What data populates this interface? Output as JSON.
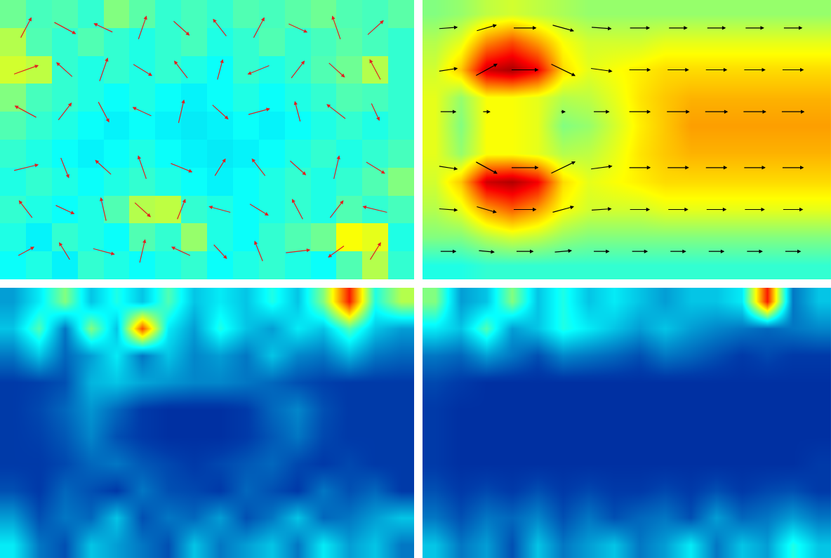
{
  "chart_data": [
    {
      "type": "heatmap",
      "color": "Jet",
      "zlim": [
        0,
        1
      ],
      "xlim": [
        -0.5,
        15.5
      ],
      "ylim": [
        -0.5,
        9.5
      ],
      "tick_labels": false,
      "z": [
        [
          0.38,
          0.4,
          0.36,
          0.42,
          0.4,
          0.38,
          0.4,
          0.42,
          0.38,
          0.4,
          0.42,
          0.4,
          0.38,
          0.45,
          0.55,
          0.42
        ],
        [
          0.4,
          0.36,
          0.42,
          0.4,
          0.38,
          0.45,
          0.42,
          0.52,
          0.4,
          0.38,
          0.42,
          0.45,
          0.48,
          0.62,
          0.6,
          0.4
        ],
        [
          0.42,
          0.4,
          0.38,
          0.4,
          0.45,
          0.55,
          0.56,
          0.42,
          0.4,
          0.38,
          0.4,
          0.42,
          0.4,
          0.45,
          0.42,
          0.44
        ],
        [
          0.4,
          0.42,
          0.4,
          0.38,
          0.4,
          0.42,
          0.4,
          0.38,
          0.36,
          0.38,
          0.4,
          0.42,
          0.4,
          0.42,
          0.45,
          0.5
        ],
        [
          0.42,
          0.4,
          0.38,
          0.36,
          0.38,
          0.4,
          0.38,
          0.36,
          0.35,
          0.36,
          0.38,
          0.4,
          0.42,
          0.4,
          0.42,
          0.44
        ],
        [
          0.45,
          0.42,
          0.4,
          0.38,
          0.36,
          0.38,
          0.36,
          0.35,
          0.36,
          0.38,
          0.36,
          0.38,
          0.4,
          0.42,
          0.4,
          0.42
        ],
        [
          0.5,
          0.44,
          0.42,
          0.4,
          0.38,
          0.4,
          0.38,
          0.36,
          0.38,
          0.4,
          0.38,
          0.4,
          0.42,
          0.45,
          0.44,
          0.42
        ],
        [
          0.58,
          0.56,
          0.42,
          0.4,
          0.42,
          0.4,
          0.42,
          0.4,
          0.38,
          0.42,
          0.4,
          0.42,
          0.45,
          0.48,
          0.55,
          0.42
        ],
        [
          0.55,
          0.45,
          0.42,
          0.45,
          0.42,
          0.4,
          0.42,
          0.44,
          0.4,
          0.42,
          0.45,
          0.42,
          0.44,
          0.46,
          0.44,
          0.42
        ],
        [
          0.48,
          0.44,
          0.45,
          0.42,
          0.5,
          0.46,
          0.42,
          0.44,
          0.42,
          0.45,
          0.44,
          0.46,
          0.48,
          0.45,
          0.44,
          0.46
        ]
      ],
      "vectors": {
        "color": "#e02020",
        "x": [
          0.5,
          2,
          3.5,
          5,
          6.5,
          8,
          9.5,
          11,
          12.5,
          14
        ],
        "y": [
          0.5,
          2,
          3.5,
          5.5,
          7,
          8.5
        ],
        "u": [
          [
            0.6,
            -0.4,
            0.8,
            0.2,
            -0.7,
            0.5,
            -0.3,
            0.9,
            -0.6,
            0.4
          ],
          [
            -0.5,
            0.7,
            -0.2,
            0.6,
            0.3,
            -0.8,
            0.7,
            -0.4,
            0.5,
            -0.9
          ],
          [
            0.9,
            0.3,
            -0.6,
            -0.3,
            0.8,
            0.4,
            -0.5,
            0.6,
            0.2,
            0.7
          ],
          [
            -0.8,
            0.5,
            0.4,
            -0.7,
            0.2,
            0.6,
            0.8,
            -0.2,
            -0.7,
            0.3
          ],
          [
            0.9,
            -0.6,
            0.3,
            0.7,
            -0.5,
            0.2,
            -0.8,
            0.5,
            0.6,
            -0.4
          ],
          [
            0.4,
            0.8,
            -0.7,
            0.3,
            0.6,
            -0.5,
            0.4,
            0.7,
            -0.3,
            0.6
          ]
        ],
        "v": [
          [
            0.3,
            0.6,
            -0.2,
            0.8,
            0.3,
            -0.5,
            0.7,
            0.1,
            -0.4,
            0.6
          ],
          [
            0.6,
            -0.3,
            0.8,
            -0.5,
            0.7,
            0.2,
            -0.4,
            0.7,
            0.6,
            0.2
          ],
          [
            0.2,
            -0.7,
            0.5,
            0.8,
            -0.3,
            0.6,
            0.6,
            -0.5,
            0.8,
            -0.4
          ],
          [
            0.4,
            0.6,
            -0.7,
            0.3,
            0.8,
            -0.5,
            0.2,
            0.7,
            0.5,
            -0.6
          ],
          [
            0.3,
            0.5,
            0.8,
            -0.4,
            0.6,
            0.7,
            -0.3,
            0.6,
            -0.5,
            0.7
          ],
          [
            0.7,
            -0.4,
            0.3,
            0.8,
            -0.5,
            0.6,
            0.7,
            -0.3,
            0.8,
            0.5
          ]
        ]
      }
    },
    {
      "type": "heatmap",
      "color": "Jet",
      "zlim": [
        0,
        1
      ],
      "xlim": [
        -0.5,
        15.5
      ],
      "ylim": [
        -0.5,
        9.5
      ],
      "tick_labels": false,
      "z": [
        [
          0.4,
          0.4,
          0.42,
          0.42,
          0.42,
          0.42,
          0.42,
          0.42,
          0.42,
          0.42,
          0.42,
          0.42,
          0.42,
          0.42,
          0.42,
          0.42
        ],
        [
          0.5,
          0.5,
          0.55,
          0.58,
          0.56,
          0.52,
          0.5,
          0.5,
          0.5,
          0.5,
          0.5,
          0.5,
          0.5,
          0.5,
          0.5,
          0.5
        ],
        [
          0.55,
          0.6,
          0.72,
          0.78,
          0.72,
          0.62,
          0.58,
          0.58,
          0.58,
          0.6,
          0.6,
          0.6,
          0.6,
          0.6,
          0.6,
          0.6
        ],
        [
          0.58,
          0.68,
          0.92,
          0.95,
          0.88,
          0.66,
          0.6,
          0.62,
          0.64,
          0.66,
          0.66,
          0.66,
          0.66,
          0.66,
          0.66,
          0.66
        ],
        [
          0.6,
          0.52,
          0.62,
          0.62,
          0.6,
          0.55,
          0.56,
          0.6,
          0.65,
          0.68,
          0.7,
          0.7,
          0.7,
          0.7,
          0.7,
          0.7
        ],
        [
          0.6,
          0.5,
          0.62,
          0.62,
          0.6,
          0.5,
          0.52,
          0.58,
          0.64,
          0.68,
          0.72,
          0.72,
          0.72,
          0.72,
          0.72,
          0.72
        ],
        [
          0.6,
          0.52,
          0.62,
          0.62,
          0.6,
          0.55,
          0.56,
          0.6,
          0.65,
          0.68,
          0.7,
          0.7,
          0.7,
          0.7,
          0.7,
          0.7
        ],
        [
          0.58,
          0.68,
          0.92,
          0.96,
          0.88,
          0.66,
          0.6,
          0.62,
          0.64,
          0.66,
          0.66,
          0.66,
          0.66,
          0.66,
          0.66,
          0.66
        ],
        [
          0.55,
          0.6,
          0.74,
          0.8,
          0.72,
          0.62,
          0.58,
          0.58,
          0.58,
          0.6,
          0.6,
          0.6,
          0.6,
          0.6,
          0.6,
          0.6
        ],
        [
          0.5,
          0.52,
          0.56,
          0.58,
          0.56,
          0.54,
          0.52,
          0.52,
          0.52,
          0.52,
          0.52,
          0.52,
          0.52,
          0.52,
          0.52,
          0.52
        ]
      ],
      "vectors": {
        "color": "#000000",
        "x": [
          0.5,
          2,
          3.5,
          5,
          6.5,
          8,
          9.5,
          11,
          12.5,
          14
        ],
        "y": [
          0.5,
          2,
          3.5,
          5.5,
          7,
          8.5
        ],
        "u": [
          [
            0.6,
            0.6,
            0.65,
            0.65,
            0.6,
            0.6,
            0.6,
            0.6,
            0.6,
            0.6
          ],
          [
            0.7,
            0.75,
            0.85,
            0.8,
            0.75,
            0.75,
            0.75,
            0.75,
            0.75,
            0.75
          ],
          [
            0.7,
            0.8,
            1.0,
            0.9,
            0.8,
            0.8,
            0.8,
            0.8,
            0.8,
            0.8
          ],
          [
            0.6,
            0.3,
            0,
            0.2,
            0.6,
            0.8,
            0.85,
            0.85,
            0.85,
            0.85
          ],
          [
            0.7,
            0.8,
            1.0,
            0.9,
            0.8,
            0.8,
            0.8,
            0.8,
            0.8,
            0.8
          ],
          [
            0.7,
            0.75,
            0.85,
            0.8,
            0.75,
            0.75,
            0.7,
            0.7,
            0.7,
            0.7
          ]
        ],
        "v": [
          [
            0,
            -0.05,
            0,
            0.05,
            0,
            0,
            0,
            0,
            0,
            0
          ],
          [
            -0.05,
            -0.2,
            0,
            0.2,
            0.05,
            0,
            0,
            0,
            0,
            0
          ],
          [
            -0.1,
            -0.4,
            0,
            0.4,
            0.1,
            0,
            0,
            0,
            0,
            0
          ],
          [
            0,
            0,
            0,
            0,
            0,
            0,
            0,
            0,
            0,
            0
          ],
          [
            0.1,
            0.4,
            0,
            -0.4,
            -0.1,
            0,
            0,
            0,
            0,
            0
          ],
          [
            0.05,
            0.2,
            0,
            -0.2,
            -0.05,
            0,
            0,
            0,
            0,
            0
          ]
        ]
      }
    },
    {
      "type": "heatmap",
      "color": "Jet",
      "zlim": [
        0,
        1
      ],
      "xlim": [
        -0.5,
        15.5
      ],
      "ylim": [
        -0.5,
        9.5
      ],
      "tick_labels": false,
      "z": [
        [
          0.35,
          0.2,
          0.15,
          0.3,
          0.25,
          0.2,
          0.15,
          0.3,
          0.2,
          0.25,
          0.3,
          0.2,
          0.35,
          0.25,
          0.3,
          0.2
        ],
        [
          0.25,
          0.15,
          0.2,
          0.18,
          0.3,
          0.15,
          0.2,
          0.18,
          0.25,
          0.15,
          0.2,
          0.3,
          0.18,
          0.2,
          0.25,
          0.3
        ],
        [
          0.15,
          0.12,
          0.18,
          0.15,
          0.12,
          0.2,
          0.15,
          0.14,
          0.12,
          0.18,
          0.15,
          0.12,
          0.2,
          0.15,
          0.18,
          0.12
        ],
        [
          0.12,
          0.12,
          0.14,
          0.18,
          0.2,
          0.16,
          0.14,
          0.12,
          0.14,
          0.16,
          0.18,
          0.14,
          0.12,
          0.14,
          0.12,
          0.12
        ],
        [
          0.12,
          0.13,
          0.16,
          0.22,
          0.15,
          0.12,
          0.1,
          0.1,
          0.1,
          0.12,
          0.16,
          0.2,
          0.14,
          0.12,
          0.12,
          0.12
        ],
        [
          0.12,
          0.14,
          0.18,
          0.24,
          0.18,
          0.12,
          0.1,
          0.1,
          0.1,
          0.12,
          0.18,
          0.22,
          0.15,
          0.12,
          0.12,
          0.12
        ],
        [
          0.12,
          0.13,
          0.15,
          0.28,
          0.3,
          0.26,
          0.24,
          0.22,
          0.22,
          0.2,
          0.18,
          0.15,
          0.13,
          0.12,
          0.12,
          0.12
        ],
        [
          0.2,
          0.3,
          0.18,
          0.25,
          0.35,
          0.2,
          0.3,
          0.22,
          0.25,
          0.2,
          0.3,
          0.22,
          0.2,
          0.28,
          0.2,
          0.18
        ],
        [
          0.3,
          0.45,
          0.2,
          0.5,
          0.3,
          0.8,
          0.35,
          0.25,
          0.4,
          0.3,
          0.25,
          0.35,
          0.3,
          0.45,
          0.3,
          0.25
        ],
        [
          0.25,
          0.35,
          0.5,
          0.3,
          0.4,
          0.3,
          0.45,
          0.3,
          0.35,
          0.3,
          0.4,
          0.3,
          0.5,
          0.85,
          0.4,
          0.55
        ]
      ]
    },
    {
      "type": "heatmap",
      "color": "Jet",
      "zlim": [
        0,
        1
      ],
      "xlim": [
        -0.5,
        15.5
      ],
      "ylim": [
        -0.5,
        9.5
      ],
      "tick_labels": false,
      "z": [
        [
          0.3,
          0.2,
          0.25,
          0.15,
          0.3,
          0.2,
          0.25,
          0.3,
          0.2,
          0.25,
          0.35,
          0.2,
          0.3,
          0.25,
          0.4,
          0.3
        ],
        [
          0.2,
          0.15,
          0.2,
          0.18,
          0.22,
          0.15,
          0.2,
          0.15,
          0.18,
          0.2,
          0.15,
          0.25,
          0.18,
          0.2,
          0.25,
          0.2
        ],
        [
          0.15,
          0.12,
          0.14,
          0.12,
          0.15,
          0.12,
          0.14,
          0.12,
          0.12,
          0.14,
          0.12,
          0.15,
          0.12,
          0.14,
          0.15,
          0.12
        ],
        [
          0.12,
          0.1,
          0.1,
          0.1,
          0.1,
          0.1,
          0.1,
          0.1,
          0.1,
          0.1,
          0.1,
          0.1,
          0.1,
          0.1,
          0.1,
          0.12
        ],
        [
          0.12,
          0.1,
          0.1,
          0.1,
          0.1,
          0.1,
          0.1,
          0.1,
          0.1,
          0.1,
          0.1,
          0.1,
          0.1,
          0.1,
          0.1,
          0.1
        ],
        [
          0.12,
          0.1,
          0.1,
          0.1,
          0.1,
          0.1,
          0.1,
          0.1,
          0.1,
          0.1,
          0.1,
          0.1,
          0.1,
          0.1,
          0.1,
          0.1
        ],
        [
          0.14,
          0.12,
          0.1,
          0.1,
          0.1,
          0.1,
          0.1,
          0.1,
          0.1,
          0.1,
          0.1,
          0.1,
          0.1,
          0.1,
          0.1,
          0.1
        ],
        [
          0.2,
          0.18,
          0.25,
          0.2,
          0.15,
          0.22,
          0.2,
          0.18,
          0.15,
          0.2,
          0.18,
          0.15,
          0.12,
          0.14,
          0.12,
          0.12
        ],
        [
          0.35,
          0.3,
          0.45,
          0.25,
          0.3,
          0.4,
          0.35,
          0.3,
          0.25,
          0.3,
          0.25,
          0.22,
          0.2,
          0.18,
          0.2,
          0.22
        ],
        [
          0.5,
          0.25,
          0.3,
          0.5,
          0.3,
          0.4,
          0.3,
          0.35,
          0.3,
          0.25,
          0.3,
          0.3,
          0.35,
          0.85,
          0.2,
          0.3
        ]
      ]
    }
  ]
}
